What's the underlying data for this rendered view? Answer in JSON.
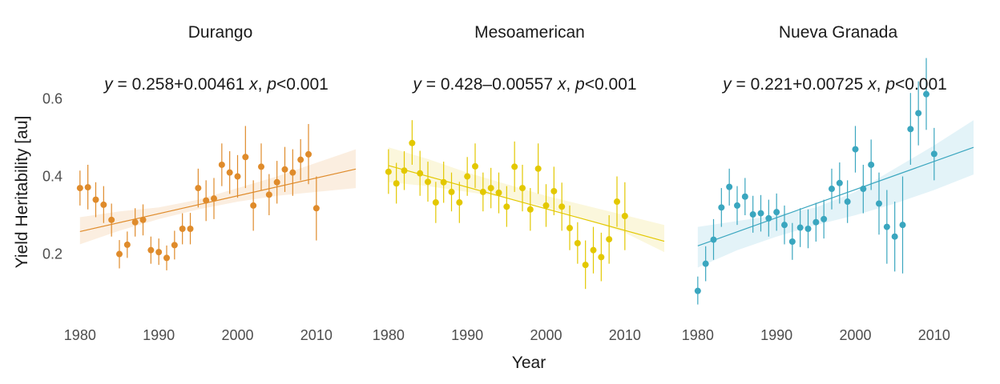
{
  "figure": {
    "xlabel": "Year",
    "ylabel": "Yield Heritability [au]"
  },
  "chart_data": [
    {
      "type": "scatter",
      "title": "Durango",
      "equation": {
        "lhs": "y",
        "intercept": "0.258",
        "sign": "+",
        "slope": "0.00461",
        "var": "x",
        "p_sym": "p",
        "p_rel": "<",
        "p_val": "0.001"
      },
      "xlabel": "Year",
      "ylabel": "Yield Heritability [au]",
      "xlim": [
        1979,
        2015
      ],
      "ylim": [
        0.03,
        0.7
      ],
      "xticks": [
        1980,
        1990,
        2000,
        2010
      ],
      "yticks": [
        0.2,
        0.4,
        0.6
      ],
      "color": "#df8b2b",
      "band_color": "#fbeee0",
      "fit": {
        "x": [
          1980,
          2015
        ],
        "y": [
          0.258,
          0.419
        ]
      },
      "band": {
        "x": [
          1980,
          1985,
          1990,
          1995,
          2000,
          2005,
          2010,
          2015
        ],
        "lower": [
          0.225,
          0.26,
          0.29,
          0.315,
          0.335,
          0.35,
          0.36,
          0.37
        ],
        "upper": [
          0.295,
          0.31,
          0.32,
          0.34,
          0.37,
          0.4,
          0.435,
          0.47
        ]
      },
      "points": [
        {
          "x": 1980,
          "y": 0.37,
          "lo": 0.325,
          "hi": 0.415
        },
        {
          "x": 1981,
          "y": 0.372,
          "lo": 0.315,
          "hi": 0.43
        },
        {
          "x": 1982,
          "y": 0.34,
          "lo": 0.295,
          "hi": 0.385
        },
        {
          "x": 1983,
          "y": 0.327,
          "lo": 0.28,
          "hi": 0.375
        },
        {
          "x": 1984,
          "y": 0.288,
          "lo": 0.245,
          "hi": 0.33
        },
        {
          "x": 1985,
          "y": 0.2,
          "lo": 0.163,
          "hi": 0.236
        },
        {
          "x": 1986,
          "y": 0.224,
          "lo": 0.19,
          "hi": 0.258
        },
        {
          "x": 1987,
          "y": 0.282,
          "lo": 0.245,
          "hi": 0.318
        },
        {
          "x": 1988,
          "y": 0.288,
          "lo": 0.248,
          "hi": 0.328
        },
        {
          "x": 1989,
          "y": 0.21,
          "lo": 0.175,
          "hi": 0.245
        },
        {
          "x": 1990,
          "y": 0.205,
          "lo": 0.172,
          "hi": 0.24
        },
        {
          "x": 1991,
          "y": 0.19,
          "lo": 0.158,
          "hi": 0.222
        },
        {
          "x": 1992,
          "y": 0.223,
          "lo": 0.186,
          "hi": 0.26
        },
        {
          "x": 1993,
          "y": 0.265,
          "lo": 0.225,
          "hi": 0.305
        },
        {
          "x": 1994,
          "y": 0.265,
          "lo": 0.225,
          "hi": 0.306
        },
        {
          "x": 1995,
          "y": 0.37,
          "lo": 0.32,
          "hi": 0.42
        },
        {
          "x": 1996,
          "y": 0.338,
          "lo": 0.285,
          "hi": 0.39
        },
        {
          "x": 1997,
          "y": 0.343,
          "lo": 0.29,
          "hi": 0.396
        },
        {
          "x": 1998,
          "y": 0.43,
          "lo": 0.375,
          "hi": 0.485
        },
        {
          "x": 1999,
          "y": 0.41,
          "lo": 0.355,
          "hi": 0.465
        },
        {
          "x": 2000,
          "y": 0.4,
          "lo": 0.345,
          "hi": 0.455
        },
        {
          "x": 2001,
          "y": 0.45,
          "lo": 0.37,
          "hi": 0.53
        },
        {
          "x": 2002,
          "y": 0.325,
          "lo": 0.26,
          "hi": 0.39
        },
        {
          "x": 2003,
          "y": 0.425,
          "lo": 0.365,
          "hi": 0.485
        },
        {
          "x": 2004,
          "y": 0.353,
          "lo": 0.3,
          "hi": 0.406
        },
        {
          "x": 2005,
          "y": 0.385,
          "lo": 0.33,
          "hi": 0.44
        },
        {
          "x": 2006,
          "y": 0.418,
          "lo": 0.36,
          "hi": 0.476
        },
        {
          "x": 2007,
          "y": 0.41,
          "lo": 0.35,
          "hi": 0.47
        },
        {
          "x": 2008,
          "y": 0.443,
          "lo": 0.39,
          "hi": 0.496
        },
        {
          "x": 2009,
          "y": 0.457,
          "lo": 0.38,
          "hi": 0.535
        },
        {
          "x": 2010,
          "y": 0.318,
          "lo": 0.235,
          "hi": 0.4
        }
      ]
    },
    {
      "type": "scatter",
      "title": "Mesoamerican",
      "equation": {
        "lhs": "y",
        "intercept": "0.428",
        "sign": "–",
        "slope": "0.00557",
        "var": "x",
        "p_sym": "p",
        "p_rel": "<",
        "p_val": "0.001"
      },
      "xlabel": "Year",
      "ylabel": "Yield Heritability [au]",
      "xlim": [
        1979,
        2015
      ],
      "ylim": [
        0.03,
        0.7
      ],
      "xticks": [
        1980,
        1990,
        2000,
        2010
      ],
      "yticks": [
        0.2,
        0.4,
        0.6
      ],
      "color": "#e3c800",
      "band_color": "#fbf7dc",
      "fit": {
        "x": [
          1980,
          2015
        ],
        "y": [
          0.428,
          0.233
        ]
      },
      "band": {
        "x": [
          1980,
          1985,
          1990,
          1995,
          2000,
          2005,
          2010,
          2015
        ],
        "lower": [
          0.385,
          0.375,
          0.36,
          0.345,
          0.32,
          0.29,
          0.255,
          0.205
        ],
        "upper": [
          0.475,
          0.445,
          0.41,
          0.38,
          0.35,
          0.325,
          0.3,
          0.275
        ]
      },
      "points": [
        {
          "x": 1980,
          "y": 0.412,
          "lo": 0.355,
          "hi": 0.47
        },
        {
          "x": 1981,
          "y": 0.382,
          "lo": 0.33,
          "hi": 0.435
        },
        {
          "x": 1982,
          "y": 0.415,
          "lo": 0.365,
          "hi": 0.465
        },
        {
          "x": 1983,
          "y": 0.486,
          "lo": 0.43,
          "hi": 0.545
        },
        {
          "x": 1984,
          "y": 0.408,
          "lo": 0.35,
          "hi": 0.466
        },
        {
          "x": 1985,
          "y": 0.386,
          "lo": 0.335,
          "hi": 0.438
        },
        {
          "x": 1986,
          "y": 0.333,
          "lo": 0.28,
          "hi": 0.386
        },
        {
          "x": 1987,
          "y": 0.385,
          "lo": 0.332,
          "hi": 0.438
        },
        {
          "x": 1988,
          "y": 0.36,
          "lo": 0.31,
          "hi": 0.41
        },
        {
          "x": 1989,
          "y": 0.333,
          "lo": 0.28,
          "hi": 0.386
        },
        {
          "x": 1990,
          "y": 0.4,
          "lo": 0.35,
          "hi": 0.45
        },
        {
          "x": 1991,
          "y": 0.426,
          "lo": 0.37,
          "hi": 0.485
        },
        {
          "x": 1992,
          "y": 0.36,
          "lo": 0.31,
          "hi": 0.41
        },
        {
          "x": 1993,
          "y": 0.37,
          "lo": 0.318,
          "hi": 0.422
        },
        {
          "x": 1994,
          "y": 0.358,
          "lo": 0.305,
          "hi": 0.41
        },
        {
          "x": 1995,
          "y": 0.322,
          "lo": 0.27,
          "hi": 0.375
        },
        {
          "x": 1996,
          "y": 0.425,
          "lo": 0.36,
          "hi": 0.49
        },
        {
          "x": 1997,
          "y": 0.37,
          "lo": 0.31,
          "hi": 0.43
        },
        {
          "x": 1998,
          "y": 0.315,
          "lo": 0.26,
          "hi": 0.37
        },
        {
          "x": 1999,
          "y": 0.42,
          "lo": 0.355,
          "hi": 0.485
        },
        {
          "x": 2000,
          "y": 0.325,
          "lo": 0.27,
          "hi": 0.38
        },
        {
          "x": 2001,
          "y": 0.362,
          "lo": 0.3,
          "hi": 0.425
        },
        {
          "x": 2002,
          "y": 0.322,
          "lo": 0.26,
          "hi": 0.384
        },
        {
          "x": 2003,
          "y": 0.267,
          "lo": 0.21,
          "hi": 0.325
        },
        {
          "x": 2004,
          "y": 0.228,
          "lo": 0.175,
          "hi": 0.282
        },
        {
          "x": 2005,
          "y": 0.172,
          "lo": 0.11,
          "hi": 0.235
        },
        {
          "x": 2006,
          "y": 0.21,
          "lo": 0.15,
          "hi": 0.27
        },
        {
          "x": 2007,
          "y": 0.192,
          "lo": 0.13,
          "hi": 0.255
        },
        {
          "x": 2008,
          "y": 0.238,
          "lo": 0.175,
          "hi": 0.3
        },
        {
          "x": 2009,
          "y": 0.335,
          "lo": 0.27,
          "hi": 0.4
        },
        {
          "x": 2010,
          "y": 0.298,
          "lo": 0.21,
          "hi": 0.385
        }
      ]
    },
    {
      "type": "scatter",
      "title": "Nueva Granada",
      "equation": {
        "lhs": "y",
        "intercept": "0.221",
        "sign": "+",
        "slope": "0.00725",
        "var": "x",
        "p_sym": "p",
        "p_rel": "<",
        "p_val": "0.001"
      },
      "xlabel": "Year",
      "ylabel": "Yield Heritability [au]",
      "xlim": [
        1979,
        2015
      ],
      "ylim": [
        0.03,
        0.7
      ],
      "xticks": [
        1980,
        1990,
        2000,
        2010
      ],
      "yticks": [
        0.2,
        0.4,
        0.6
      ],
      "color": "#3aa6bf",
      "band_color": "#e3f3f8",
      "fit": {
        "x": [
          1980,
          2015
        ],
        "y": [
          0.221,
          0.475
        ]
      },
      "band": {
        "x": [
          1980,
          1985,
          1990,
          1995,
          2000,
          2005,
          2010,
          2015
        ],
        "lower": [
          0.165,
          0.21,
          0.245,
          0.275,
          0.3,
          0.33,
          0.365,
          0.405
        ],
        "upper": [
          0.27,
          0.285,
          0.3,
          0.32,
          0.36,
          0.42,
          0.48,
          0.545
        ]
      },
      "points": [
        {
          "x": 1980,
          "y": 0.105,
          "lo": 0.07,
          "hi": 0.142
        },
        {
          "x": 1981,
          "y": 0.175,
          "lo": 0.13,
          "hi": 0.22
        },
        {
          "x": 1982,
          "y": 0.237,
          "lo": 0.185,
          "hi": 0.29
        },
        {
          "x": 1983,
          "y": 0.32,
          "lo": 0.27,
          "hi": 0.37
        },
        {
          "x": 1984,
          "y": 0.373,
          "lo": 0.325,
          "hi": 0.42
        },
        {
          "x": 1985,
          "y": 0.325,
          "lo": 0.275,
          "hi": 0.375
        },
        {
          "x": 1986,
          "y": 0.348,
          "lo": 0.3,
          "hi": 0.396
        },
        {
          "x": 1987,
          "y": 0.302,
          "lo": 0.255,
          "hi": 0.35
        },
        {
          "x": 1988,
          "y": 0.305,
          "lo": 0.258,
          "hi": 0.352
        },
        {
          "x": 1989,
          "y": 0.292,
          "lo": 0.245,
          "hi": 0.34
        },
        {
          "x": 1990,
          "y": 0.308,
          "lo": 0.26,
          "hi": 0.356
        },
        {
          "x": 1991,
          "y": 0.275,
          "lo": 0.225,
          "hi": 0.325
        },
        {
          "x": 1992,
          "y": 0.232,
          "lo": 0.185,
          "hi": 0.28
        },
        {
          "x": 1993,
          "y": 0.268,
          "lo": 0.218,
          "hi": 0.318
        },
        {
          "x": 1994,
          "y": 0.265,
          "lo": 0.215,
          "hi": 0.315
        },
        {
          "x": 1995,
          "y": 0.282,
          "lo": 0.232,
          "hi": 0.332
        },
        {
          "x": 1996,
          "y": 0.29,
          "lo": 0.24,
          "hi": 0.34
        },
        {
          "x": 1997,
          "y": 0.368,
          "lo": 0.315,
          "hi": 0.42
        },
        {
          "x": 1998,
          "y": 0.383,
          "lo": 0.33,
          "hi": 0.436
        },
        {
          "x": 1999,
          "y": 0.335,
          "lo": 0.28,
          "hi": 0.39
        },
        {
          "x": 2000,
          "y": 0.47,
          "lo": 0.41,
          "hi": 0.53
        },
        {
          "x": 2001,
          "y": 0.368,
          "lo": 0.305,
          "hi": 0.43
        },
        {
          "x": 2002,
          "y": 0.43,
          "lo": 0.365,
          "hi": 0.495
        },
        {
          "x": 2003,
          "y": 0.33,
          "lo": 0.25,
          "hi": 0.41
        },
        {
          "x": 2004,
          "y": 0.27,
          "lo": 0.175,
          "hi": 0.365
        },
        {
          "x": 2005,
          "y": 0.245,
          "lo": 0.155,
          "hi": 0.335
        },
        {
          "x": 2006,
          "y": 0.275,
          "lo": 0.15,
          "hi": 0.4
        },
        {
          "x": 2007,
          "y": 0.522,
          "lo": 0.43,
          "hi": 0.615
        },
        {
          "x": 2008,
          "y": 0.563,
          "lo": 0.48,
          "hi": 0.645
        },
        {
          "x": 2009,
          "y": 0.612,
          "lo": 0.52,
          "hi": 0.705
        },
        {
          "x": 2010,
          "y": 0.458,
          "lo": 0.39,
          "hi": 0.525
        }
      ]
    }
  ]
}
